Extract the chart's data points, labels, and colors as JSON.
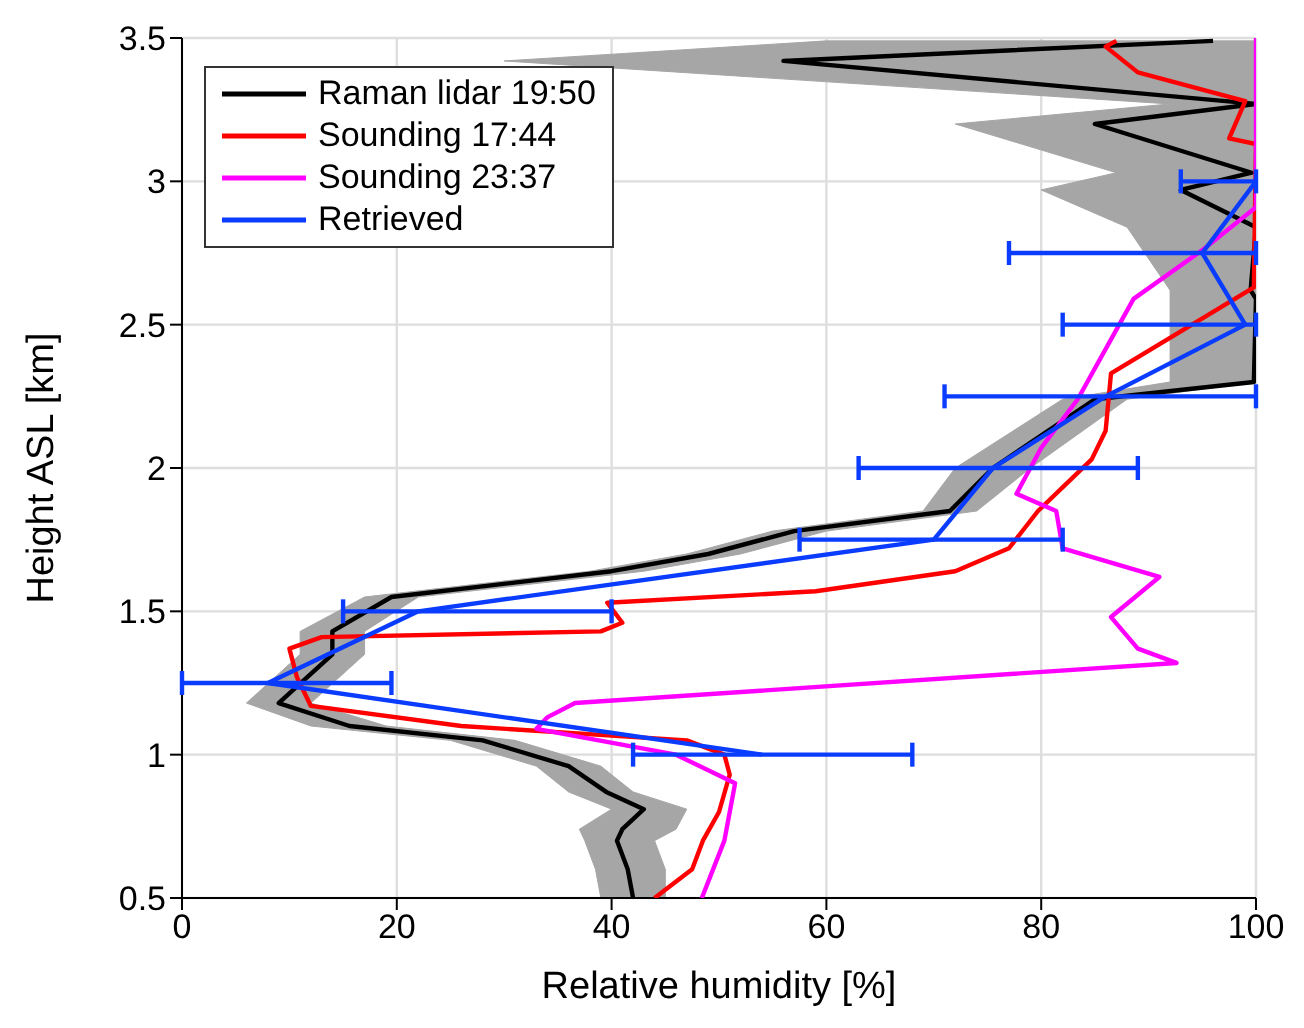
{
  "chart_data": {
    "type": "line",
    "xlabel": "Relative humidity [%]",
    "ylabel": "Height ASL [km]",
    "xlim": [
      0,
      100
    ],
    "xticks": [
      0,
      20,
      40,
      60,
      80,
      100
    ],
    "ylim": [
      0.5,
      3.5
    ],
    "yticks": [
      0.5,
      1,
      1.5,
      2,
      2.5,
      3,
      3.5
    ],
    "grid": true,
    "legend": "top left",
    "marker": "none",
    "line_style": "solid",
    "series": [
      {
        "type": "area",
        "color": "#a6a6a6",
        "x": [
          45,
          45,
          44,
          46,
          47,
          42,
          39,
          31,
          19,
          12,
          17,
          17,
          22,
          43,
          52,
          60,
          74,
          79,
          88,
          100,
          100,
          100,
          100,
          100,
          100,
          100,
          100,
          100,
          100,
          60,
          30,
          92,
          72,
          87,
          80,
          88,
          92,
          92,
          92,
          82,
          72,
          69,
          55,
          47,
          38,
          17,
          11,
          11,
          6,
          12,
          25,
          33,
          36,
          40,
          37,
          37.5,
          38.5,
          39
        ],
        "values": [
          0.5,
          0.6,
          0.7,
          0.74,
          0.81,
          0.87,
          0.96,
          1.05,
          1.1,
          1.18,
          1.35,
          1.43,
          1.55,
          1.64,
          1.7,
          1.78,
          1.85,
          2.0,
          2.24,
          2.3,
          2.59,
          2.62,
          2.84,
          2.97,
          3.03,
          3.2,
          3.27,
          3.42,
          3.49,
          3.49,
          3.42,
          3.27,
          3.2,
          3.03,
          2.97,
          2.84,
          2.62,
          2.59,
          2.3,
          2.24,
          2.0,
          1.85,
          1.78,
          1.7,
          1.64,
          1.55,
          1.43,
          1.35,
          1.18,
          1.1,
          1.05,
          0.96,
          0.87,
          0.81,
          0.74,
          0.7,
          0.6,
          0.5
        ]
      },
      {
        "name": "Raman lidar 19:50",
        "color": "#000000",
        "x": [
          42,
          41.5,
          40.5,
          41,
          43,
          39.5,
          36,
          28,
          15.6,
          9,
          14,
          14,
          19.5,
          40,
          49,
          57,
          71.5,
          75.5,
          85,
          99.8,
          100,
          99.5,
          100,
          93,
          99.6,
          85,
          100,
          56,
          96
        ],
        "values": [
          0.5,
          0.6,
          0.7,
          0.74,
          0.81,
          0.87,
          0.96,
          1.05,
          1.1,
          1.18,
          1.35,
          1.43,
          1.55,
          1.64,
          1.7,
          1.78,
          1.85,
          2.0,
          2.24,
          2.3,
          2.59,
          2.62,
          2.84,
          2.97,
          3.03,
          3.2,
          3.27,
          3.42,
          3.49
        ]
      },
      {
        "name": "Sounding 17:44",
        "color": "#ff0000",
        "x": [
          44,
          47.5,
          48.5,
          50,
          51,
          50.5,
          47,
          26,
          12,
          10.7,
          10,
          13,
          39,
          41,
          39.6,
          59,
          72,
          77,
          79.7,
          84.7,
          86,
          86.5,
          99.8,
          100,
          97.5,
          99,
          89,
          86,
          87
        ],
        "values": [
          0.5,
          0.6,
          0.7,
          0.8,
          0.93,
          1.0,
          1.05,
          1.1,
          1.17,
          1.27,
          1.37,
          1.41,
          1.43,
          1.46,
          1.53,
          1.57,
          1.64,
          1.72,
          1.85,
          2.03,
          2.13,
          2.33,
          2.63,
          3.13,
          3.15,
          3.28,
          3.38,
          3.47,
          3.49
        ]
      },
      {
        "name": "Sounding 23:37",
        "color": "#ff00ff",
        "x": [
          48.4,
          50.5,
          51.5,
          46,
          33,
          34,
          36.6,
          92.6,
          89,
          86.5,
          91,
          82,
          81.4,
          77.7,
          80,
          83.4,
          88.6,
          95,
          100,
          100
        ],
        "values": [
          0.5,
          0.7,
          0.9,
          1.0,
          1.09,
          1.13,
          1.18,
          1.32,
          1.37,
          1.48,
          1.62,
          1.72,
          1.85,
          1.91,
          2.07,
          2.24,
          2.59,
          2.76,
          2.91,
          3.5
        ]
      },
      {
        "name": "Retrieved",
        "color": "#0a3cff",
        "x": [
          54,
          8,
          22,
          70,
          75.5,
          86,
          99,
          95,
          100
        ],
        "values": [
          1.0,
          1.25,
          1.5,
          1.75,
          2.0,
          2.25,
          2.5,
          2.75,
          3.0
        ],
        "xerrors": [
          [
            42,
            68
          ],
          [
            0,
            19.5
          ],
          [
            15,
            40
          ],
          [
            57.5,
            82
          ],
          [
            63,
            89
          ],
          [
            71,
            100
          ],
          [
            82,
            100
          ],
          [
            77,
            100
          ],
          [
            93,
            100
          ]
        ]
      }
    ]
  }
}
